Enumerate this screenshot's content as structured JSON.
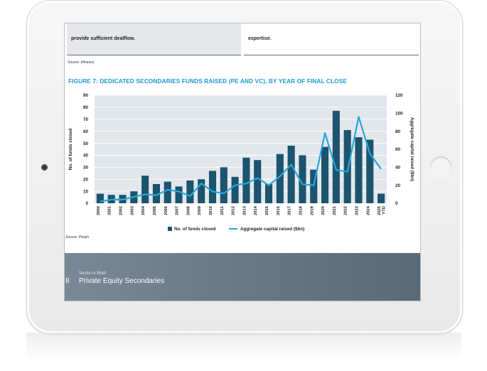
{
  "page": {
    "top_left_text": "provide sufficient dealflow.",
    "top_right_text": "expertise.",
    "source_top": "Source: bfinance",
    "figure_title": "FIGURE 7: DEDICATED SECONDARIES FUNDS RAISED (PE AND VC), BY YEAR OF FINAL CLOSE",
    "source_bottom": "Source: Preqin",
    "banner_number": "8",
    "banner_subtitle": "Sector in Brief:",
    "banner_title": "Private Equity Secondaries"
  },
  "colors": {
    "bar": "#1c546e",
    "line": "#27a6dd",
    "title": "#1b9bd1",
    "grid": "#cfd6dc",
    "plot_bg": "#e2e7ec"
  },
  "chart_data": {
    "type": "bar",
    "categories": [
      "2000",
      "2001",
      "2002",
      "2003",
      "2004",
      "2005",
      "2006",
      "2007",
      "2008",
      "2009",
      "2010",
      "2011",
      "2012",
      "2013",
      "2014",
      "2015",
      "2016",
      "2017",
      "2018",
      "2019",
      "2020",
      "2021",
      "2022",
      "2023",
      "2024",
      "2025 YTD"
    ],
    "series": [
      {
        "name": "No. of funds closed",
        "type": "bar",
        "axis": "left",
        "values": [
          8,
          7,
          7,
          10,
          23,
          16,
          18,
          14,
          19,
          20,
          27,
          30,
          22,
          38,
          36,
          16,
          41,
          48,
          40,
          28,
          47,
          77,
          61,
          55,
          53,
          8
        ]
      },
      {
        "name": "Aggregate capital raised ($bn)",
        "type": "line",
        "axis": "right",
        "values": [
          2,
          4,
          4,
          7,
          10,
          9,
          15,
          13,
          8,
          22,
          13,
          11,
          20,
          22,
          28,
          20,
          30,
          43,
          21,
          20,
          78,
          37,
          35,
          96,
          55,
          38
        ]
      }
    ],
    "y_left": {
      "label": "No. of funds closed",
      "min": 0,
      "max": 90,
      "ticks": [
        "0",
        "10",
        "20",
        "30",
        "40",
        "50",
        "60",
        "70",
        "80",
        "90"
      ]
    },
    "y_right": {
      "label": "Aggregate capital raised ($bn)",
      "min": 0,
      "max": 120,
      "ticks": [
        "0",
        "20",
        "40",
        "60",
        "80",
        "100",
        "120"
      ]
    },
    "grid": true,
    "legend_position": "bottom"
  }
}
